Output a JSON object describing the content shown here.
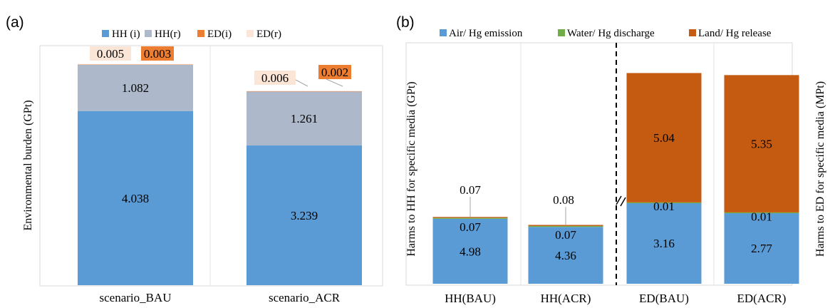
{
  "panels": {
    "a": {
      "label": "(a)"
    },
    "b": {
      "label": "(b)"
    }
  },
  "chart_data": [
    {
      "type": "bar",
      "stacked": true,
      "categories": [
        "scenario_BAU",
        "scenario_ACR"
      ],
      "ylabel": "Environmental burden (GPt)",
      "grid": false,
      "legend_position": "top",
      "series": [
        {
          "name": "HH (i)",
          "values": [
            4.038,
            3.239
          ],
          "color": "#5B9BD5",
          "labels": [
            "4.038",
            "3.239"
          ]
        },
        {
          "name": "HH(r)",
          "values": [
            1.082,
            1.261
          ],
          "color": "#ADB9CA",
          "labels": [
            "1.082",
            "1.261"
          ]
        },
        {
          "name": "ED(i)",
          "values": [
            0.003,
            0.002
          ],
          "color": "#ED7D31",
          "labels": [
            "0.003",
            "0.002"
          ]
        },
        {
          "name": "ED(r)",
          "values": [
            0.005,
            0.006
          ],
          "color": "#FBE5D6",
          "labels": [
            "0.005",
            "0.006"
          ]
        }
      ]
    },
    {
      "type": "bar",
      "stacked": true,
      "categories": [
        "HH(BAU)",
        "HH(ACR)",
        "ED(BAU)",
        "ED(ACR)"
      ],
      "ylabel_left": "Harms to HH for specific media (GPt)",
      "ylabel_right": "Harms to ED for specific media (MPt)",
      "grid": false,
      "axis_break": "between HH(ACR) and ED(BAU)",
      "legend_position": "top",
      "series": [
        {
          "name": "Air/ Hg emission",
          "values": [
            4.98,
            4.36,
            3.16,
            2.77
          ],
          "color": "#5B9BD5",
          "labels": [
            "4.98",
            "4.36",
            "3.16",
            "2.77"
          ]
        },
        {
          "name": "Water/ Hg discharge",
          "values": [
            0.07,
            0.07,
            0.01,
            0.01
          ],
          "color": "#70AD47",
          "labels": [
            "0.07",
            "0.07",
            "0.01",
            "0.01"
          ]
        },
        {
          "name": "Land/ Hg release",
          "values": [
            0.07,
            0.08,
            5.04,
            5.35
          ],
          "color": "#C55A11",
          "labels": [
            "0.07",
            "0.08",
            "5.04",
            "5.35"
          ]
        }
      ]
    }
  ]
}
